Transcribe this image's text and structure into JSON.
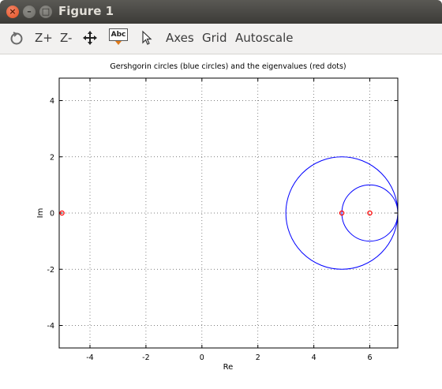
{
  "window": {
    "title": "Figure 1"
  },
  "toolbar": {
    "zoom_in": "Z+",
    "zoom_out": "Z-",
    "text_tool": "Abc",
    "axes": "Axes",
    "grid": "Grid",
    "autoscale": "Autoscale"
  },
  "icons": {
    "rotate": "rotate-icon",
    "pan": "pan-icon",
    "text": "text-icon",
    "pointer": "pointer-icon"
  },
  "chart_data": {
    "type": "scatter",
    "title": "Gershgorin circles (blue circles) and the eigenvalues (red dots)",
    "xlabel": "Re",
    "ylabel": "Im",
    "xlim": [
      -5.1,
      7
    ],
    "ylim": [
      -4.8,
      4.8
    ],
    "xticks": [
      -4,
      -2,
      0,
      2,
      4,
      6
    ],
    "yticks": [
      -4,
      -2,
      0,
      2,
      4
    ],
    "grid": true,
    "circles": [
      {
        "center": [
          5,
          0
        ],
        "radius": 2,
        "color": "#0000ff"
      },
      {
        "center": [
          6,
          0
        ],
        "radius": 1,
        "color": "#0000ff"
      }
    ],
    "eigenvalues": {
      "x": [
        -5,
        5,
        6
      ],
      "y": [
        0,
        0,
        0
      ],
      "color": "#ff0000"
    }
  }
}
